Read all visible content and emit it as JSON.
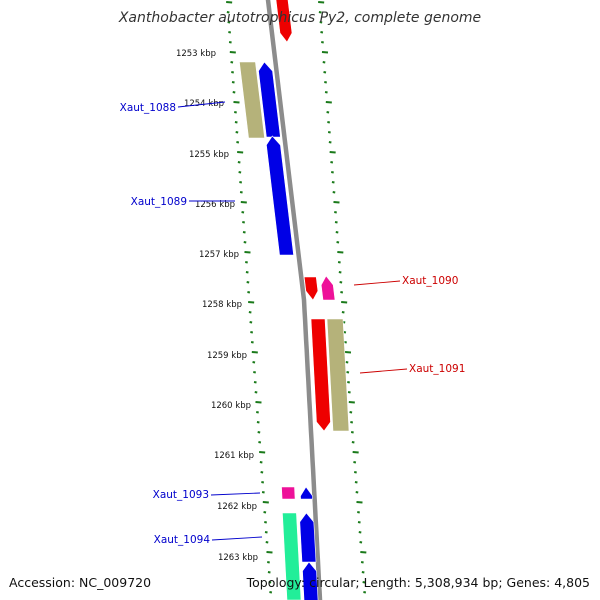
{
  "title": "Xanthobacter autotrophicus Py2, complete genome",
  "accession_text": "Accession: NC_009720",
  "summary_text": "Topology: circular; Length: 5,308,934 bp; Genes: 4,805",
  "colors": {
    "backbone": "#8c8c8c",
    "ticks": "#1a7a1a",
    "label_left": "#0000cc",
    "label_right": "#cc0000",
    "gene_blue": "#0000e6",
    "gene_red": "#ee0000",
    "gene_magenta": "#ee1199",
    "gene_khaki": "#b5b27a",
    "gene_green": "#22ee99"
  },
  "kbp_labels": [
    {
      "text": "1253 kbp"
    },
    {
      "text": "1254 kbp"
    },
    {
      "text": "1255 kbp"
    },
    {
      "text": "1256 kbp"
    },
    {
      "text": "1257 kbp"
    },
    {
      "text": "1258 kbp"
    },
    {
      "text": "1259 kbp"
    },
    {
      "text": "1260 kbp"
    },
    {
      "text": "1261 kbp"
    },
    {
      "text": "1262 kbp"
    },
    {
      "text": "1263 kbp"
    }
  ],
  "gene_labels": [
    {
      "text": "Xaut_1088",
      "side": "left"
    },
    {
      "text": "Xaut_1089",
      "side": "left"
    },
    {
      "text": "Xaut_1090",
      "side": "right"
    },
    {
      "text": "Xaut_1091",
      "side": "right"
    },
    {
      "text": "Xaut_1093",
      "side": "left"
    },
    {
      "text": "Xaut_1094",
      "side": "left"
    }
  ]
}
